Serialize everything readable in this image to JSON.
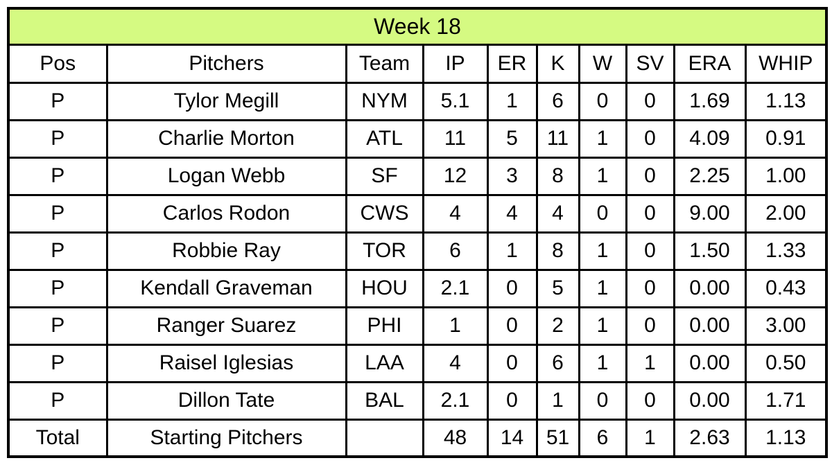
{
  "style": {
    "title_bg": "#d5fa82",
    "border_color": "#000000",
    "text_color": "#000000",
    "page_bg": "#ffffff"
  },
  "chart_data": {
    "type": "table",
    "title": "Week 18",
    "columns": [
      "Pos",
      "Pitchers",
      "Team",
      "IP",
      "ER",
      "K",
      "W",
      "SV",
      "ERA",
      "WHIP"
    ],
    "rows": [
      [
        "P",
        "Tylor Megill",
        "NYM",
        "5.1",
        "1",
        "6",
        "0",
        "0",
        "1.69",
        "1.13"
      ],
      [
        "P",
        "Charlie Morton",
        "ATL",
        "11",
        "5",
        "11",
        "1",
        "0",
        "4.09",
        "0.91"
      ],
      [
        "P",
        "Logan Webb",
        "SF",
        "12",
        "3",
        "8",
        "1",
        "0",
        "2.25",
        "1.00"
      ],
      [
        "P",
        "Carlos Rodon",
        "CWS",
        "4",
        "4",
        "4",
        "0",
        "0",
        "9.00",
        "2.00"
      ],
      [
        "P",
        "Robbie Ray",
        "TOR",
        "6",
        "1",
        "8",
        "1",
        "0",
        "1.50",
        "1.33"
      ],
      [
        "P",
        "Kendall Graveman",
        "HOU",
        "2.1",
        "0",
        "5",
        "1",
        "0",
        "0.00",
        "0.43"
      ],
      [
        "P",
        "Ranger Suarez",
        "PHI",
        "1",
        "0",
        "2",
        "1",
        "0",
        "0.00",
        "3.00"
      ],
      [
        "P",
        "Raisel Iglesias",
        "LAA",
        "4",
        "0",
        "6",
        "1",
        "1",
        "0.00",
        "0.50"
      ],
      [
        "P",
        "Dillon Tate",
        "BAL",
        "2.1",
        "0",
        "1",
        "0",
        "0",
        "0.00",
        "1.71"
      ]
    ],
    "total_row": [
      "Total",
      "Starting Pitchers",
      "",
      "48",
      "14",
      "51",
      "6",
      "1",
      "2.63",
      "1.13"
    ]
  }
}
